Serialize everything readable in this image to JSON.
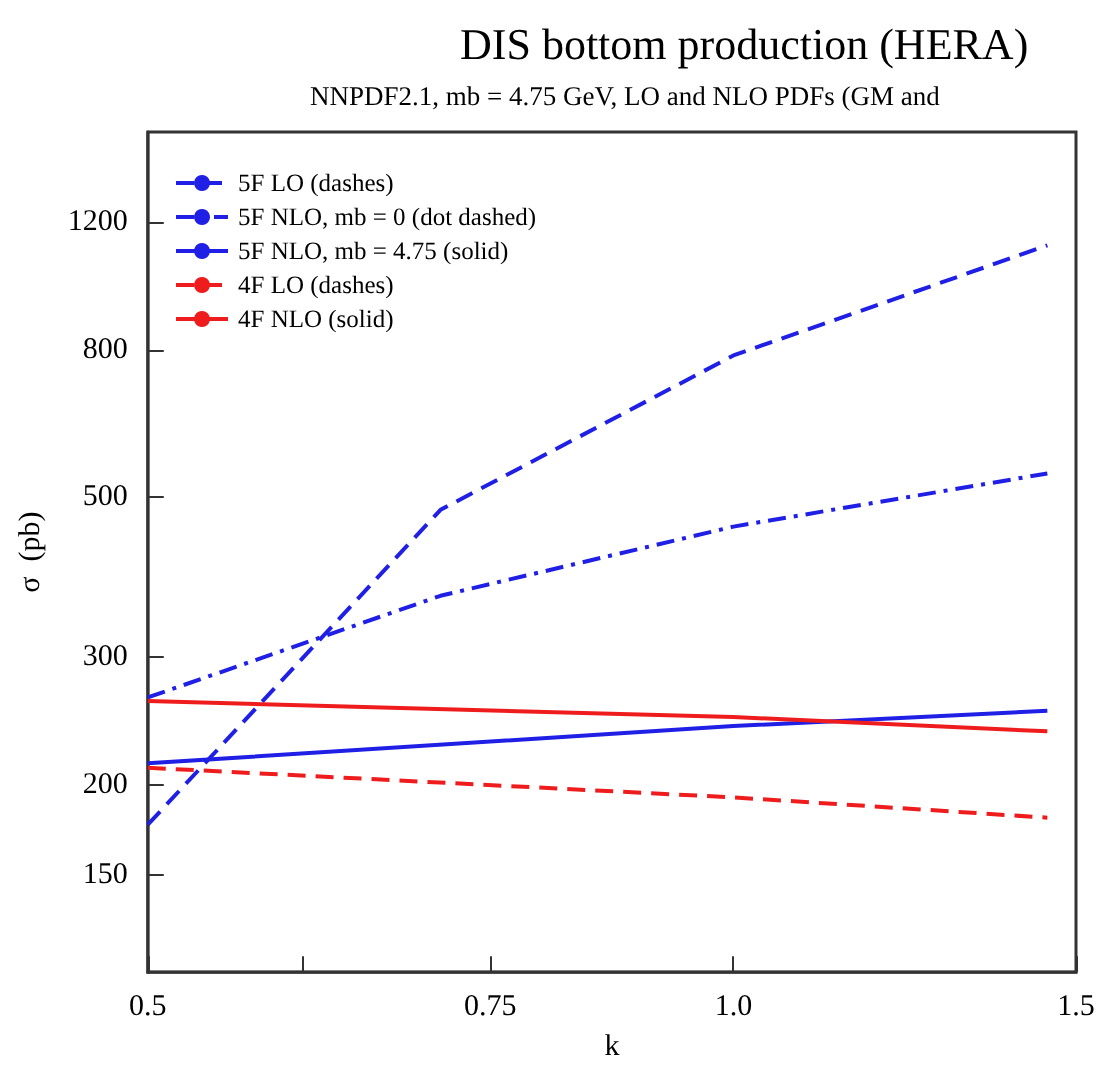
{
  "chart_data": {
    "type": "line",
    "title": "DIS bottom production (HERA)",
    "subtitle": "NNPDF2.1, mb = 4.75 GeV, LO and NLO PDFs (GM and",
    "xlabel": "k",
    "ylabel": "σ  (pb)",
    "log": "xy",
    "xlim": [
      0.5,
      1.5
    ],
    "xticks": [
      0.5,
      {
        "value": 0.6,
        "label": null
      },
      0.75,
      {
        "value": 1.0,
        "label": "1.0"
      },
      1.5
    ],
    "ylim": [
      110,
      1600
    ],
    "yticks": [
      150,
      200,
      300,
      500,
      800,
      1200
    ],
    "grid": false,
    "legend": "top left",
    "marker": "none",
    "series": [
      {
        "name": "5F LO (dashes)",
        "color": "#1f1fe6",
        "line_style": "dashed",
        "x": [
          0.5,
          0.707,
          1.0,
          1.45
        ],
        "values": [
          176,
          480,
          785,
          1115
        ]
      },
      {
        "name": "5F NLO, mb = 0 (dot dashed)",
        "color": "#1f1fe6",
        "line_style": "dashdot",
        "x": [
          0.5,
          0.707,
          1.0,
          1.45
        ],
        "values": [
          264,
          365,
          455,
          539
        ]
      },
      {
        "name": "5F NLO, mb = 4.75 (solid)",
        "color": "#1f1fe6",
        "line_style": "solid",
        "x": [
          0.5,
          1.0,
          1.45
        ],
        "values": [
          214,
          241,
          253
        ]
      },
      {
        "name": "4F LO (dashes)",
        "color": "#ee1c1c",
        "line_style": "dashed",
        "x": [
          0.5,
          1.0,
          1.45
        ],
        "values": [
          211,
          192,
          180
        ]
      },
      {
        "name": "4F NLO (solid)",
        "color": "#ee1c1c",
        "line_style": "solid",
        "x": [
          0.5,
          1.0,
          1.45
        ],
        "values": [
          261,
          248,
          237
        ]
      }
    ]
  }
}
